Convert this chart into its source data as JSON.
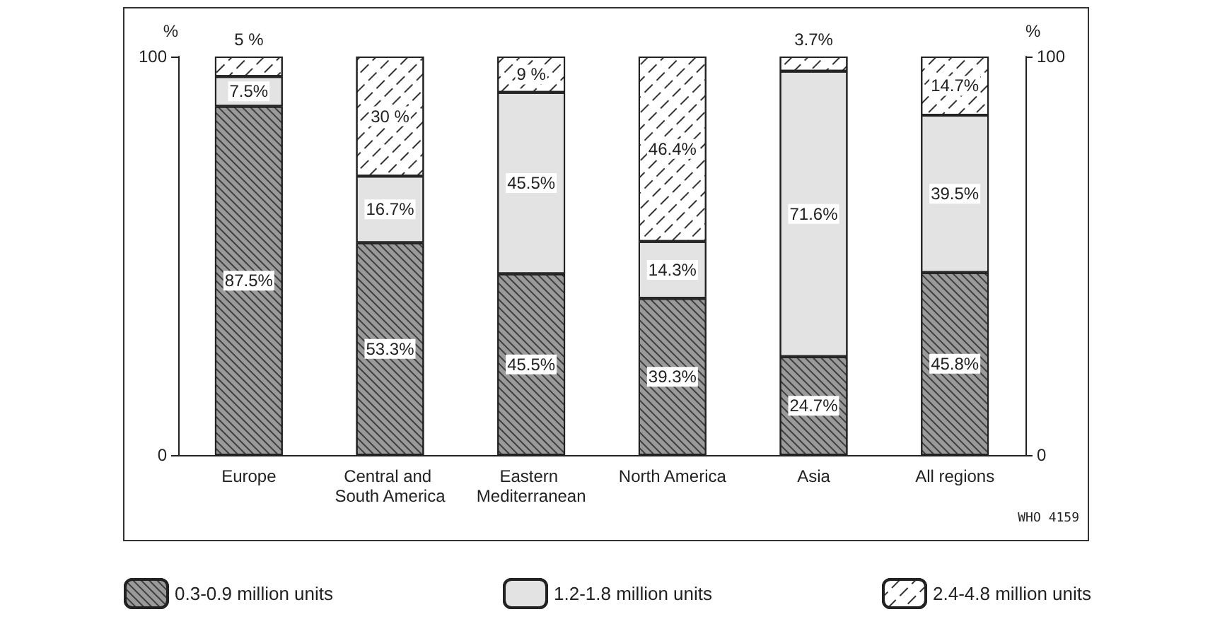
{
  "chart_data": {
    "type": "bar",
    "stacked": true,
    "categories": [
      "Europe",
      "Central and South America",
      "Eastern Mediterranean",
      "North America",
      "Asia",
      "All regions"
    ],
    "series": [
      {
        "name": "0.3-0.9 million units",
        "color": "#9a9a9a",
        "values": [
          87.5,
          53.3,
          45.5,
          39.3,
          24.7,
          45.8
        ],
        "value_labels": [
          "87.5%",
          "53.3%",
          "45.5%",
          "39.3%",
          "24.7%",
          "45.8%"
        ]
      },
      {
        "name": "1.2-1.8 million units",
        "color": "#e3e3e3",
        "values": [
          7.5,
          16.7,
          45.5,
          14.3,
          71.6,
          39.5
        ],
        "value_labels": [
          "7.5%",
          "16.7%",
          "45.5%",
          "14.3%",
          "71.6%",
          "39.5%"
        ]
      },
      {
        "name": "2.4-4.8 million units",
        "color": "#ffffff",
        "values": [
          5,
          30,
          9,
          46.4,
          3.7,
          14.7
        ],
        "value_labels": [
          "5 %",
          "30 %",
          "9 %",
          "46.4%",
          "3.7%",
          "14.7%"
        ]
      }
    ],
    "ylabel": "%",
    "y2label": "%",
    "ylim": [
      0,
      100
    ],
    "yticks": [
      0,
      100
    ],
    "y2lim": [
      0,
      100
    ],
    "y2ticks": [
      0,
      100
    ],
    "grid": false,
    "legend": "bottom",
    "annotations": [
      "WHO 4159"
    ]
  }
}
